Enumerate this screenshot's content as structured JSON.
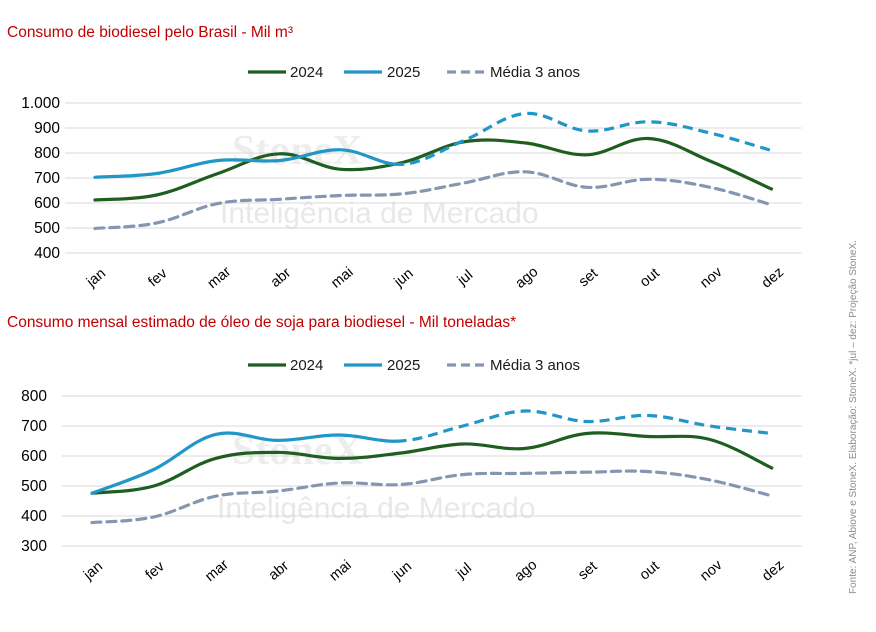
{
  "chart_data": [
    {
      "type": "line",
      "title": "Consumo de biodiesel pelo Brasil - Mil m³",
      "categories": [
        "jan",
        "fev",
        "mar",
        "abr",
        "mai",
        "jun",
        "jul",
        "ago",
        "set",
        "out",
        "nov",
        "dez"
      ],
      "y_ticks": [
        "1.000",
        "900",
        "800",
        "700",
        "600",
        "500",
        "400"
      ],
      "ylim": [
        400,
        1000
      ],
      "legend_position": "top-center",
      "grid": "horizontal",
      "series": [
        {
          "name": "2024",
          "color": "#1e5e20",
          "style": "solid",
          "values": [
            612,
            632,
            718,
            797,
            735,
            762,
            845,
            840,
            793,
            858,
            768,
            656
          ]
        },
        {
          "name": "2025",
          "color": "#2196c8",
          "style": "solid-then-dashed",
          "projection_start_index": 5,
          "values": [
            703,
            718,
            770,
            770,
            813,
            755,
            850,
            958,
            888,
            925,
            880,
            810
          ]
        },
        {
          "name": "Média 3 anos",
          "color": "#8497b0",
          "style": "dashed",
          "values": [
            498,
            520,
            598,
            615,
            630,
            637,
            680,
            725,
            663,
            695,
            663,
            593
          ]
        }
      ]
    },
    {
      "type": "line",
      "title": "Consumo mensal estimado de óleo de soja para biodiesel - Mil toneladas*",
      "categories": [
        "jan",
        "fev",
        "mar",
        "abr",
        "mai",
        "jun",
        "jul",
        "ago",
        "set",
        "out",
        "nov",
        "dez"
      ],
      "y_ticks": [
        "800",
        "700",
        "600",
        "500",
        "400",
        "300"
      ],
      "ylim": [
        300,
        800
      ],
      "legend_position": "top-center",
      "grid": "horizontal",
      "series": [
        {
          "name": "2024",
          "color": "#1e5e20",
          "style": "solid",
          "values": [
            476,
            500,
            592,
            612,
            592,
            610,
            640,
            625,
            675,
            665,
            655,
            560
          ]
        },
        {
          "name": "2025",
          "color": "#2196c8",
          "style": "solid-then-dashed",
          "projection_start_index": 5,
          "values": [
            476,
            555,
            672,
            652,
            670,
            650,
            700,
            750,
            715,
            735,
            700,
            675
          ]
        },
        {
          "name": "Média 3 anos",
          "color": "#8497b0",
          "style": "dashed",
          "values": [
            378,
            397,
            466,
            483,
            510,
            505,
            538,
            542,
            546,
            548,
            520,
            467
          ]
        }
      ]
    }
  ],
  "watermark": {
    "line1": "StoneX",
    "line2": "Inteligência de Mercado"
  },
  "source_note": "Fonte: ANP, Abiove e StoneX. Elaboração: StoneX. *jul – dez: Projeção StoneX."
}
